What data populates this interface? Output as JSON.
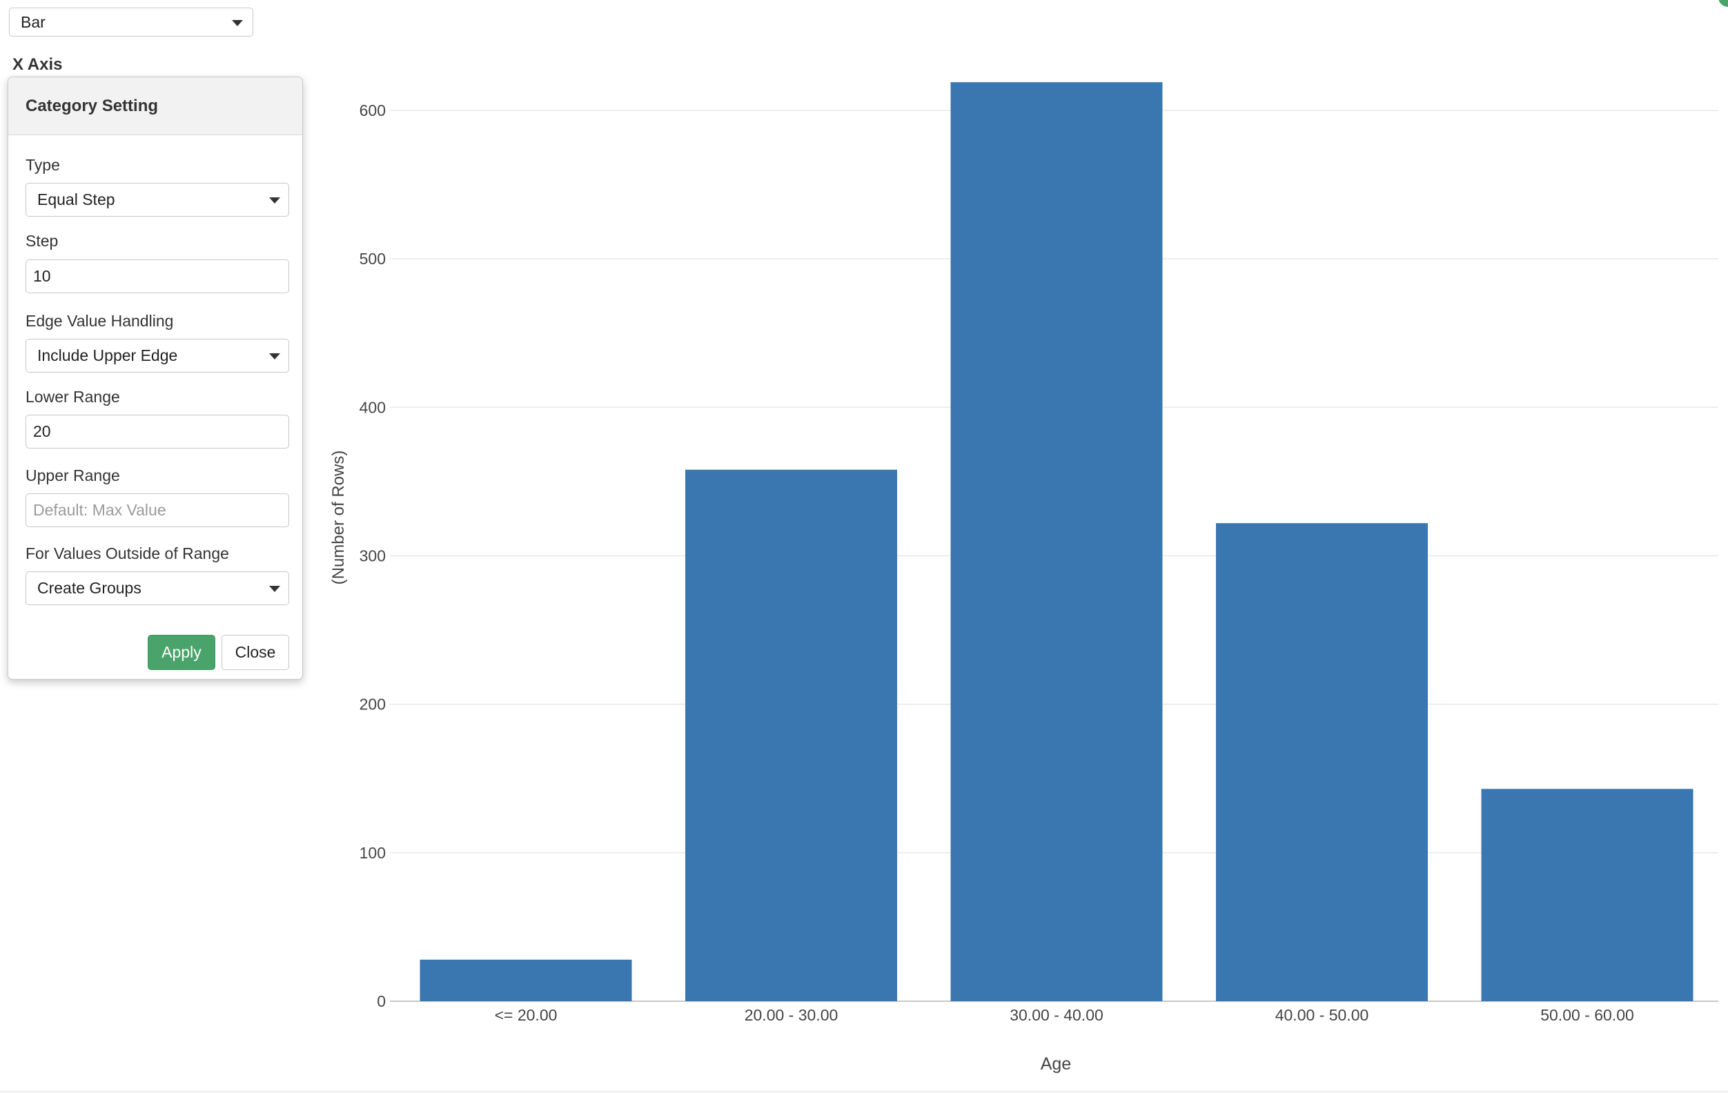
{
  "chart_type_select": {
    "value": "Bar"
  },
  "x_axis_section": {
    "label": "X Axis"
  },
  "category_setting": {
    "title": "Category Setting",
    "type_label": "Type",
    "type_value": "Equal Step",
    "step_label": "Step",
    "step_value": "10",
    "edge_label": "Edge Value Handling",
    "edge_value": "Include Upper Edge",
    "lower_range_label": "Lower Range",
    "lower_range_value": "20",
    "upper_range_label": "Upper Range",
    "upper_range_placeholder": "Default: Max Value",
    "outside_label": "For Values Outside of Range",
    "outside_value": "Create Groups",
    "apply_label": "Apply",
    "close_label": "Close"
  },
  "colors": {
    "bar": "#3a76b0",
    "apply_button": "#4aa36a",
    "gridline": "#e8e8e8"
  },
  "chart_data": {
    "type": "bar",
    "categories": [
      "<= 20.00",
      "20.00 - 30.00",
      "30.00 - 40.00",
      "40.00 - 50.00",
      "50.00 - 60.00"
    ],
    "values": [
      28,
      358,
      619,
      322,
      143
    ],
    "xlabel": "Age",
    "ylabel": "(Number of Rows)",
    "ylim": [
      0,
      650
    ],
    "yticks": [
      0,
      100,
      200,
      300,
      400,
      500,
      600
    ],
    "grid": true
  }
}
